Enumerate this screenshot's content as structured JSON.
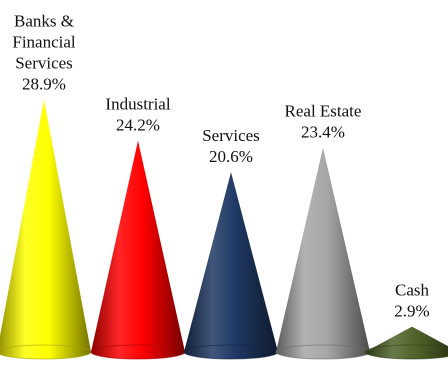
{
  "chart_data": {
    "type": "bar",
    "shape": "cone",
    "categories": [
      [
        "Banks &",
        "Financial",
        "Services"
      ],
      [
        "Industrial"
      ],
      [
        "Services"
      ],
      [
        "Real Estate"
      ],
      [
        "Cash"
      ]
    ],
    "values": [
      28.9,
      24.2,
      20.6,
      23.4,
      2.9
    ],
    "value_labels": [
      "28.9%",
      "24.2%",
      "20.6%",
      "23.4%",
      "2.9%"
    ],
    "colors": [
      "#ffff00",
      "#ff0000",
      "#1f3864",
      "#a6a6a6",
      "#4f6228"
    ],
    "ylim": [
      0,
      30
    ],
    "grid": false,
    "legend": "none"
  }
}
